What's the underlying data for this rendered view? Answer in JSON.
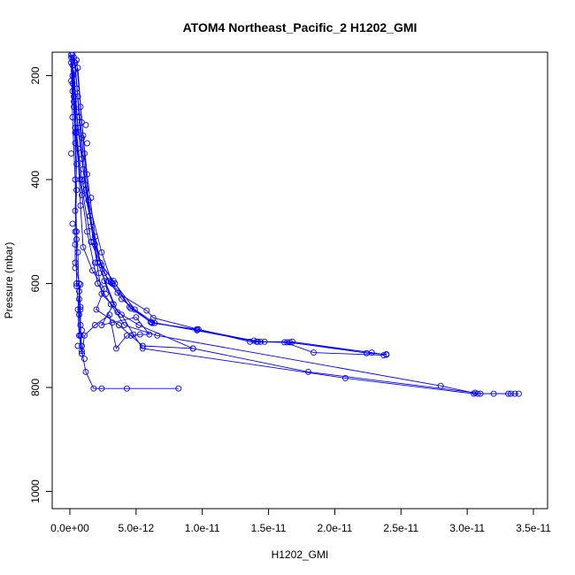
{
  "chart_data": {
    "type": "scatter",
    "title": "ATOM4 Northeast_Pacific_2 H1202_GMI",
    "xlabel": "H1202_GMI",
    "ylabel": "Pressure (mbar)",
    "xlim": [
      0,
      3.5e-11
    ],
    "ylim": [
      1000,
      150
    ],
    "y_reversed": true,
    "grid": false,
    "x_ticks": [
      0,
      5e-12,
      1e-11,
      1.5e-11,
      2e-11,
      2.5e-11,
      3e-11,
      3.5e-11
    ],
    "x_tick_labels": [
      "0.0e+00",
      "5.0e-12",
      "1.0e-11",
      "1.5e-11",
      "2.0e-11",
      "2.5e-11",
      "3.0e-11",
      "3.5e-11"
    ],
    "y_ticks": [
      200,
      400,
      600,
      800,
      1000
    ],
    "y_tick_labels": [
      "200",
      "400",
      "600",
      "800",
      "1000"
    ],
    "color": "#0000ff",
    "series": [
      {
        "points": [
          [
            1e-13,
            160
          ],
          [
            2e-13,
            230
          ],
          [
            4e-13,
            300
          ],
          [
            8e-13,
            400
          ],
          [
            1.6e-12,
            520
          ],
          [
            2.9e-12,
            595
          ],
          [
            3.6e-12,
            618
          ],
          [
            5.8e-12,
            652
          ],
          [
            6.3e-12,
            666
          ],
          [
            9.7e-12,
            688
          ],
          [
            1.36e-11,
            712
          ],
          [
            1.66e-11,
            713
          ],
          [
            2.24e-11,
            734
          ],
          [
            2.39e-11,
            736
          ]
        ]
      },
      {
        "points": [
          [
            3e-13,
            165
          ],
          [
            6e-13,
            240
          ],
          [
            9e-13,
            320
          ],
          [
            1.2e-12,
            410
          ],
          [
            1.9e-12,
            525
          ],
          [
            2.6e-12,
            580
          ],
          [
            3.9e-12,
            630
          ],
          [
            6.1e-12,
            674
          ],
          [
            1.41e-11,
            712
          ],
          [
            1.62e-11,
            713
          ],
          [
            1.84e-11,
            733
          ],
          [
            2.37e-11,
            738
          ]
        ]
      },
      {
        "points": [
          [
            5e-13,
            170
          ],
          [
            8e-13,
            260
          ],
          [
            1.1e-12,
            350
          ],
          [
            1.4e-12,
            440
          ],
          [
            2.4e-12,
            540
          ],
          [
            3.2e-12,
            600
          ],
          [
            4.6e-12,
            648
          ],
          [
            6.2e-12,
            675
          ],
          [
            1.44e-11,
            712
          ],
          [
            1.64e-11,
            713
          ],
          [
            2.28e-11,
            733
          ]
        ]
      },
      {
        "points": [
          [
            2e-13,
            180
          ],
          [
            5e-13,
            270
          ],
          [
            9e-13,
            360
          ],
          [
            1.5e-12,
            470
          ],
          [
            2.3e-12,
            560
          ],
          [
            3.4e-12,
            600
          ],
          [
            4.9e-12,
            650
          ],
          [
            6.4e-12,
            676
          ],
          [
            9.6e-12,
            690
          ],
          [
            1.39e-11,
            710
          ],
          [
            1.47e-11,
            712
          ],
          [
            1.68e-11,
            712
          ],
          [
            2.39e-11,
            737
          ]
        ]
      },
      {
        "points": [
          [
            4e-13,
            175
          ],
          [
            7e-13,
            280
          ],
          [
            1e-12,
            380
          ],
          [
            1.6e-12,
            490
          ],
          [
            2.1e-12,
            560
          ],
          [
            3.6e-12,
            655
          ],
          [
            5.2e-12,
            680
          ],
          [
            9.3e-12,
            725
          ],
          [
            1.8e-11,
            770
          ],
          [
            3.06e-11,
            810
          ],
          [
            3.1e-11,
            812
          ],
          [
            3.2e-11,
            812
          ],
          [
            3.36e-11,
            812
          ],
          [
            3.39e-11,
            812
          ]
        ]
      },
      {
        "points": [
          [
            3e-13,
            190
          ],
          [
            6e-13,
            300
          ],
          [
            1.2e-12,
            420
          ],
          [
            1.8e-12,
            520
          ],
          [
            2.4e-12,
            620
          ],
          [
            3.9e-12,
            660
          ],
          [
            4.8e-12,
            698
          ],
          [
            5.5e-12,
            725
          ],
          [
            2.08e-11,
            782
          ],
          [
            3.05e-11,
            812
          ],
          [
            3.33e-11,
            812
          ]
        ]
      },
      {
        "points": [
          [
            2e-13,
            200
          ],
          [
            4e-13,
            310
          ],
          [
            9e-13,
            430
          ],
          [
            1.3e-12,
            500
          ],
          [
            2.1e-12,
            600
          ],
          [
            3.1e-12,
            640
          ],
          [
            4.1e-12,
            680
          ],
          [
            6.6e-12,
            700
          ],
          [
            2.8e-11,
            797
          ],
          [
            3.08e-11,
            812
          ],
          [
            3.31e-11,
            812
          ]
        ]
      },
      {
        "points": [
          [
            6e-13,
            185
          ],
          [
            9e-13,
            290
          ],
          [
            1.3e-12,
            390
          ],
          [
            1.9e-12,
            510
          ],
          [
            2.6e-12,
            595
          ],
          [
            3.3e-12,
            640
          ],
          [
            2.4e-12,
            680
          ],
          [
            3.2e-12,
            675
          ],
          [
            5e-12,
            665
          ],
          [
            6e-12,
            698
          ],
          [
            5.3e-12,
            698
          ],
          [
            4.6e-12,
            700
          ]
        ]
      },
      {
        "points": [
          [
            1e-13,
            165
          ],
          [
            3e-13,
            250
          ],
          [
            4e-13,
            330
          ],
          [
            5e-13,
            420
          ],
          [
            4e-13,
            500
          ],
          [
            4e-13,
            560
          ],
          [
            7e-13,
            600
          ],
          [
            8e-13,
            650
          ],
          [
            8e-13,
            700
          ],
          [
            9e-13,
            730
          ],
          [
            1.2e-12,
            770
          ],
          [
            1.8e-12,
            802
          ],
          [
            2.4e-12,
            802
          ],
          [
            4.3e-12,
            802
          ],
          [
            8.2e-12,
            802
          ]
        ]
      },
      {
        "points": [
          [
            2e-13,
            170
          ],
          [
            3e-13,
            260
          ],
          [
            5e-13,
            370
          ],
          [
            4e-13,
            460
          ],
          [
            6e-13,
            540
          ],
          [
            7e-13,
            630
          ],
          [
            8e-13,
            680
          ],
          [
            9e-13,
            735
          ],
          [
            1.1e-12,
            700
          ],
          [
            1.9e-12,
            680
          ],
          [
            3e-12,
            660
          ],
          [
            3.5e-12,
            725
          ],
          [
            4.3e-12,
            700
          ]
        ]
      },
      {
        "points": [
          [
            1e-13,
            175
          ],
          [
            2e-13,
            280
          ],
          [
            4e-13,
            400
          ],
          [
            5e-13,
            500
          ],
          [
            5e-13,
            600
          ],
          [
            7e-13,
            660
          ],
          [
            8e-13,
            700
          ],
          [
            9e-13,
            735
          ],
          [
            7e-13,
            700
          ],
          [
            6e-13,
            650
          ],
          [
            8e-13,
            602
          ]
        ]
      },
      {
        "points": [
          [
            2e-13,
            160
          ],
          [
            3e-13,
            240
          ],
          [
            6e-13,
            340
          ],
          [
            8e-13,
            450
          ],
          [
            1e-12,
            530
          ],
          [
            1.7e-12,
            575
          ],
          [
            2.6e-12,
            610
          ],
          [
            2e-12,
            650
          ],
          [
            3.7e-12,
            680
          ],
          [
            5.5e-12,
            720
          ],
          [
            9.3e-12,
            725
          ]
        ]
      },
      {
        "points": [
          [
            3e-13,
            190
          ],
          [
            5e-13,
            310
          ],
          [
            9e-13,
            400
          ],
          [
            1.5e-12,
            470
          ],
          [
            1.8e-12,
            520
          ],
          [
            2.4e-12,
            565
          ],
          [
            3.3e-12,
            595
          ],
          [
            4.5e-12,
            645
          ],
          [
            6.2e-12,
            676
          ],
          [
            9.6e-12,
            688
          ],
          [
            1.42e-11,
            712
          ]
        ]
      }
    ],
    "extra_points": [
      [
        1e-13,
        210
      ],
      [
        2e-13,
        215
      ],
      [
        5e-13,
        225
      ],
      [
        1e-13,
        350
      ],
      [
        2e-13,
        485
      ],
      [
        5e-13,
        515
      ],
      [
        4e-13,
        525
      ],
      [
        4e-13,
        570
      ],
      [
        5e-13,
        605
      ],
      [
        8e-13,
        645
      ],
      [
        9e-13,
        690
      ],
      [
        1.3e-12,
        330
      ],
      [
        1e-12,
        315
      ],
      [
        1.2e-12,
        295
      ],
      [
        1.6e-12,
        435
      ],
      [
        1.9e-12,
        560
      ],
      [
        3.1e-12,
        598
      ],
      [
        2.2e-12,
        580
      ],
      [
        2.7e-12,
        620
      ],
      [
        7e-13,
        615
      ],
      [
        9e-13,
        720
      ],
      [
        1.1e-12,
        745
      ],
      [
        6e-13,
        720
      ]
    ]
  }
}
